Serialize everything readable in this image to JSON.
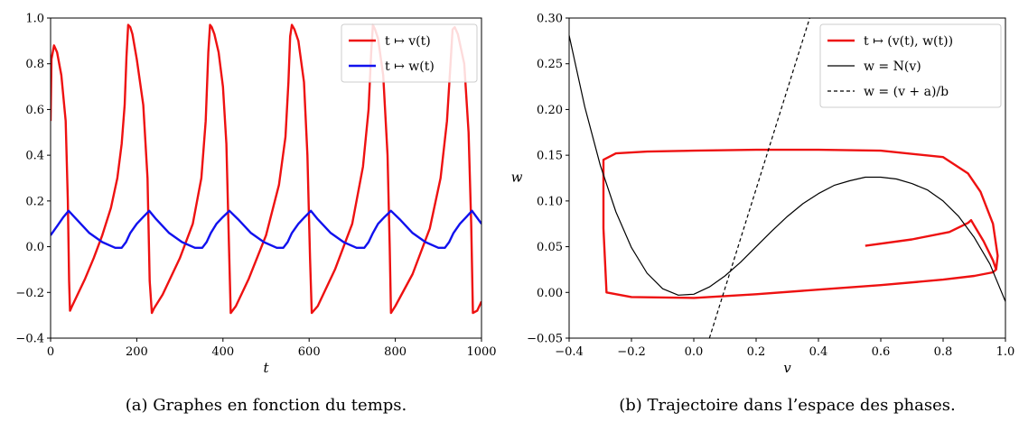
{
  "chart_data": [
    {
      "type": "line",
      "title": "",
      "caption": "(a) Graphes en fonction du temps.",
      "xlabel": "t",
      "ylabel": "",
      "xlim": [
        0,
        1000
      ],
      "ylim": [
        -0.4,
        1.0
      ],
      "xticks": [
        0,
        200,
        400,
        600,
        800,
        1000
      ],
      "xtick_labels": [
        "0",
        "200",
        "400",
        "600",
        "800",
        "1000"
      ],
      "yticks": [
        -0.4,
        -0.2,
        0.0,
        0.2,
        0.4,
        0.6,
        0.8,
        1.0
      ],
      "ytick_labels": [
        "−0.4",
        "−0.2",
        "0.0",
        "0.2",
        "0.4",
        "0.6",
        "0.8",
        "1.0"
      ],
      "legend_position": "top-right",
      "grid": false,
      "series": [
        {
          "name": "t ↦ v(t)",
          "color": "#ee1111",
          "x": [
            0,
            2,
            8,
            15,
            25,
            35,
            40,
            43,
            45,
            50,
            60,
            80,
            100,
            120,
            140,
            155,
            165,
            172,
            176,
            180,
            185,
            190,
            200,
            215,
            225,
            230,
            235,
            240,
            260,
            300,
            330,
            350,
            360,
            366,
            370,
            374,
            380,
            390,
            400,
            408,
            414,
            418,
            430,
            460,
            500,
            530,
            545,
            552,
            556,
            560,
            566,
            575,
            588,
            596,
            602,
            606,
            620,
            660,
            700,
            725,
            738,
            744,
            748,
            753,
            760,
            772,
            782,
            787,
            790,
            800,
            840,
            880,
            905,
            920,
            928,
            933,
            938,
            945,
            960,
            970,
            976,
            980,
            990,
            1000
          ],
          "y": [
            0.55,
            0.82,
            0.88,
            0.85,
            0.75,
            0.55,
            0.2,
            -0.15,
            -0.28,
            -0.26,
            -0.22,
            -0.14,
            -0.05,
            0.05,
            0.17,
            0.3,
            0.45,
            0.62,
            0.83,
            0.97,
            0.96,
            0.93,
            0.82,
            0.62,
            0.3,
            -0.15,
            -0.29,
            -0.27,
            -0.21,
            -0.05,
            0.1,
            0.3,
            0.55,
            0.85,
            0.97,
            0.96,
            0.93,
            0.85,
            0.7,
            0.45,
            0.0,
            -0.29,
            -0.26,
            -0.14,
            0.05,
            0.27,
            0.48,
            0.72,
            0.92,
            0.97,
            0.95,
            0.9,
            0.72,
            0.4,
            -0.05,
            -0.29,
            -0.26,
            -0.1,
            0.1,
            0.35,
            0.6,
            0.85,
            0.97,
            0.95,
            0.91,
            0.75,
            0.4,
            0.0,
            -0.29,
            -0.26,
            -0.12,
            0.08,
            0.3,
            0.55,
            0.8,
            0.95,
            0.96,
            0.93,
            0.8,
            0.5,
            0.1,
            -0.29,
            -0.28,
            -0.24
          ]
        },
        {
          "name": "t ↦ w(t)",
          "color": "#1111ee",
          "x": [
            0,
            15,
            30,
            42,
            60,
            90,
            120,
            150,
            165,
            175,
            185,
            200,
            215,
            229,
            245,
            275,
            305,
            335,
            352,
            362,
            372,
            385,
            400,
            415,
            435,
            465,
            495,
            525,
            540,
            550,
            560,
            575,
            590,
            604,
            620,
            650,
            680,
            710,
            728,
            738,
            748,
            760,
            775,
            790,
            810,
            840,
            870,
            900,
            915,
            925,
            935,
            950,
            965,
            978,
            1000
          ],
          "y": [
            0.05,
            0.09,
            0.13,
            0.157,
            0.12,
            0.06,
            0.02,
            -0.005,
            -0.005,
            0.02,
            0.06,
            0.1,
            0.13,
            0.157,
            0.12,
            0.06,
            0.02,
            -0.005,
            -0.005,
            0.02,
            0.06,
            0.1,
            0.13,
            0.157,
            0.12,
            0.06,
            0.02,
            -0.005,
            -0.005,
            0.02,
            0.06,
            0.1,
            0.13,
            0.157,
            0.12,
            0.06,
            0.02,
            -0.005,
            -0.005,
            0.02,
            0.06,
            0.1,
            0.13,
            0.157,
            0.12,
            0.06,
            0.02,
            -0.005,
            -0.005,
            0.02,
            0.06,
            0.1,
            0.13,
            0.157,
            0.1
          ]
        }
      ]
    },
    {
      "type": "line",
      "title": "",
      "caption": "(b) Trajectoire dans l’espace des phases.",
      "xlabel": "v",
      "ylabel": "w",
      "xlim": [
        -0.4,
        1.0
      ],
      "ylim": [
        -0.05,
        0.3
      ],
      "xticks": [
        -0.4,
        -0.2,
        0.0,
        0.2,
        0.4,
        0.6,
        0.8,
        1.0
      ],
      "xtick_labels": [
        "−0.4",
        "−0.2",
        "0.0",
        "0.2",
        "0.4",
        "0.6",
        "0.8",
        "1.0"
      ],
      "yticks": [
        -0.05,
        0.0,
        0.05,
        0.1,
        0.15,
        0.2,
        0.25,
        0.3
      ],
      "ytick_labels": [
        "−0.05",
        "0.00",
        "0.05",
        "0.10",
        "0.15",
        "0.20",
        "0.25",
        "0.30"
      ],
      "legend_position": "top-right",
      "grid": false,
      "series": [
        {
          "name": "t ↦ (v(t), w(t))",
          "color": "#ee1111",
          "style": "solid",
          "x": [
            0.55,
            0.7,
            0.82,
            0.88,
            0.89,
            0.9,
            0.93,
            0.96,
            0.97,
            0.96,
            0.9,
            0.8,
            0.6,
            0.4,
            0.2,
            0.0,
            -0.2,
            -0.28,
            -0.29,
            -0.29,
            -0.25,
            -0.15,
            0.0,
            0.2,
            0.4,
            0.6,
            0.8,
            0.88,
            0.92,
            0.96,
            0.975,
            0.97
          ],
          "y": [
            0.051,
            0.058,
            0.066,
            0.076,
            0.079,
            0.073,
            0.056,
            0.035,
            0.025,
            0.022,
            0.018,
            0.014,
            0.008,
            0.003,
            -0.002,
            -0.006,
            -0.005,
            0.0,
            0.07,
            0.145,
            0.152,
            0.154,
            0.155,
            0.156,
            0.156,
            0.155,
            0.148,
            0.13,
            0.11,
            0.075,
            0.04,
            0.025
          ]
        },
        {
          "name": "w = N(v)",
          "color": "#000000",
          "style": "solid",
          "x": [
            -0.4,
            -0.35,
            -0.3,
            -0.25,
            -0.2,
            -0.15,
            -0.1,
            -0.05,
            0.0,
            0.05,
            0.1,
            0.15,
            0.2,
            0.25,
            0.3,
            0.35,
            0.4,
            0.45,
            0.5,
            0.55,
            0.6,
            0.65,
            0.7,
            0.75,
            0.8,
            0.85,
            0.9,
            0.95,
            1.0
          ],
          "y": [
            0.281,
            0.203,
            0.139,
            0.088,
            0.049,
            0.021,
            0.004,
            -0.003,
            -0.002,
            0.006,
            0.018,
            0.033,
            0.05,
            0.067,
            0.083,
            0.097,
            0.108,
            0.117,
            0.122,
            0.126,
            0.126,
            0.124,
            0.119,
            0.112,
            0.1,
            0.083,
            0.06,
            0.031,
            -0.01
          ]
        },
        {
          "name": "w = (v + a)/b",
          "color": "#000000",
          "style": "dashed",
          "x": [
            0.05,
            0.372
          ],
          "y": [
            -0.05,
            0.3
          ]
        }
      ]
    }
  ]
}
